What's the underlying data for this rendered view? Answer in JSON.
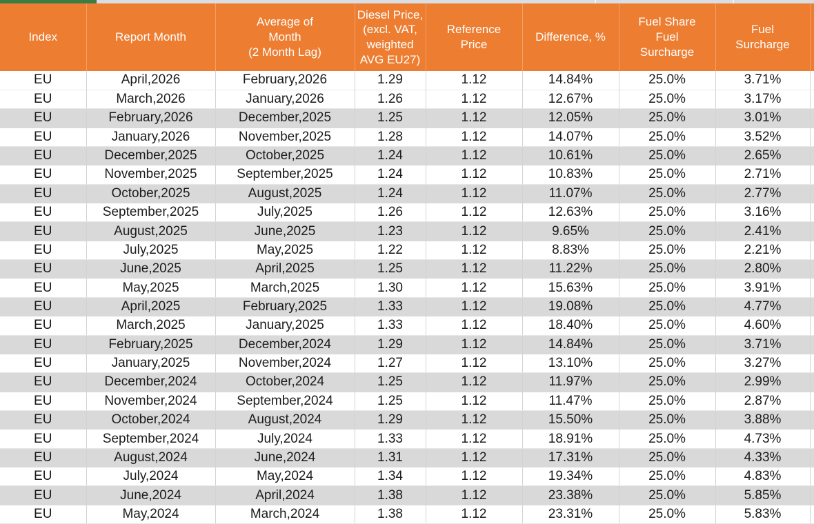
{
  "app": {
    "accent_green": "#3a7d44",
    "top_strip_gray": "#dadde2"
  },
  "table": {
    "header_bg": "#ed7d31",
    "header_text_color": "#ffffff",
    "stripe_color": "#d9d9d9",
    "columns": [
      {
        "key": "index",
        "label": "Index"
      },
      {
        "key": "report-month",
        "label": "Report Month"
      },
      {
        "key": "average-month",
        "label": "Average of\nMonth\n(2 Month Lag)"
      },
      {
        "key": "diesel-price",
        "label": "Diesel Price,\n(excl. VAT,\nweighted\nAVG EU27)"
      },
      {
        "key": "reference-price",
        "label": "Reference\nPrice"
      },
      {
        "key": "difference",
        "label": "Difference, %"
      },
      {
        "key": "fuel-share",
        "label": "Fuel Share\nFuel\nSurcharge"
      },
      {
        "key": "fuel-surcharge",
        "label": "Fuel\nSurcharge"
      }
    ],
    "rows": [
      [
        "EU",
        "April,2026",
        "February,2026",
        "1.29",
        "1.12",
        "14.84%",
        "25.0%",
        "3.71%"
      ],
      [
        "EU",
        "March,2026",
        "January,2026",
        "1.26",
        "1.12",
        "12.67%",
        "25.0%",
        "3.17%"
      ],
      [
        "EU",
        "February,2026",
        "December,2025",
        "1.25",
        "1.12",
        "12.05%",
        "25.0%",
        "3.01%"
      ],
      [
        "EU",
        "January,2026",
        "November,2025",
        "1.28",
        "1.12",
        "14.07%",
        "25.0%",
        "3.52%"
      ],
      [
        "EU",
        "December,2025",
        "October,2025",
        "1.24",
        "1.12",
        "10.61%",
        "25.0%",
        "2.65%"
      ],
      [
        "EU",
        "November,2025",
        "September,2025",
        "1.24",
        "1.12",
        "10.83%",
        "25.0%",
        "2.71%"
      ],
      [
        "EU",
        "October,2025",
        "August,2025",
        "1.24",
        "1.12",
        "11.07%",
        "25.0%",
        "2.77%"
      ],
      [
        "EU",
        "September,2025",
        "July,2025",
        "1.26",
        "1.12",
        "12.63%",
        "25.0%",
        "3.16%"
      ],
      [
        "EU",
        "August,2025",
        "June,2025",
        "1.23",
        "1.12",
        "9.65%",
        "25.0%",
        "2.41%"
      ],
      [
        "EU",
        "July,2025",
        "May,2025",
        "1.22",
        "1.12",
        "8.83%",
        "25.0%",
        "2.21%"
      ],
      [
        "EU",
        "June,2025",
        "April,2025",
        "1.25",
        "1.12",
        "11.22%",
        "25.0%",
        "2.80%"
      ],
      [
        "EU",
        "May,2025",
        "March,2025",
        "1.30",
        "1.12",
        "15.63%",
        "25.0%",
        "3.91%"
      ],
      [
        "EU",
        "April,2025",
        "February,2025",
        "1.33",
        "1.12",
        "19.08%",
        "25.0%",
        "4.77%"
      ],
      [
        "EU",
        "March,2025",
        "January,2025",
        "1.33",
        "1.12",
        "18.40%",
        "25.0%",
        "4.60%"
      ],
      [
        "EU",
        "February,2025",
        "December,2024",
        "1.29",
        "1.12",
        "14.84%",
        "25.0%",
        "3.71%"
      ],
      [
        "EU",
        "January,2025",
        "November,2024",
        "1.27",
        "1.12",
        "13.10%",
        "25.0%",
        "3.27%"
      ],
      [
        "EU",
        "December,2024",
        "October,2024",
        "1.25",
        "1.12",
        "11.97%",
        "25.0%",
        "2.99%"
      ],
      [
        "EU",
        "November,2024",
        "September,2024",
        "1.25",
        "1.12",
        "11.47%",
        "25.0%",
        "2.87%"
      ],
      [
        "EU",
        "October,2024",
        "August,2024",
        "1.29",
        "1.12",
        "15.50%",
        "25.0%",
        "3.88%"
      ],
      [
        "EU",
        "September,2024",
        "July,2024",
        "1.33",
        "1.12",
        "18.91%",
        "25.0%",
        "4.73%"
      ],
      [
        "EU",
        "August,2024",
        "June,2024",
        "1.31",
        "1.12",
        "17.31%",
        "25.0%",
        "4.33%"
      ],
      [
        "EU",
        "July,2024",
        "May,2024",
        "1.34",
        "1.12",
        "19.34%",
        "25.0%",
        "4.83%"
      ],
      [
        "EU",
        "June,2024",
        "April,2024",
        "1.38",
        "1.12",
        "23.38%",
        "25.0%",
        "5.85%"
      ],
      [
        "EU",
        "May,2024",
        "March,2024",
        "1.38",
        "1.12",
        "23.31%",
        "25.0%",
        "5.83%"
      ]
    ]
  }
}
